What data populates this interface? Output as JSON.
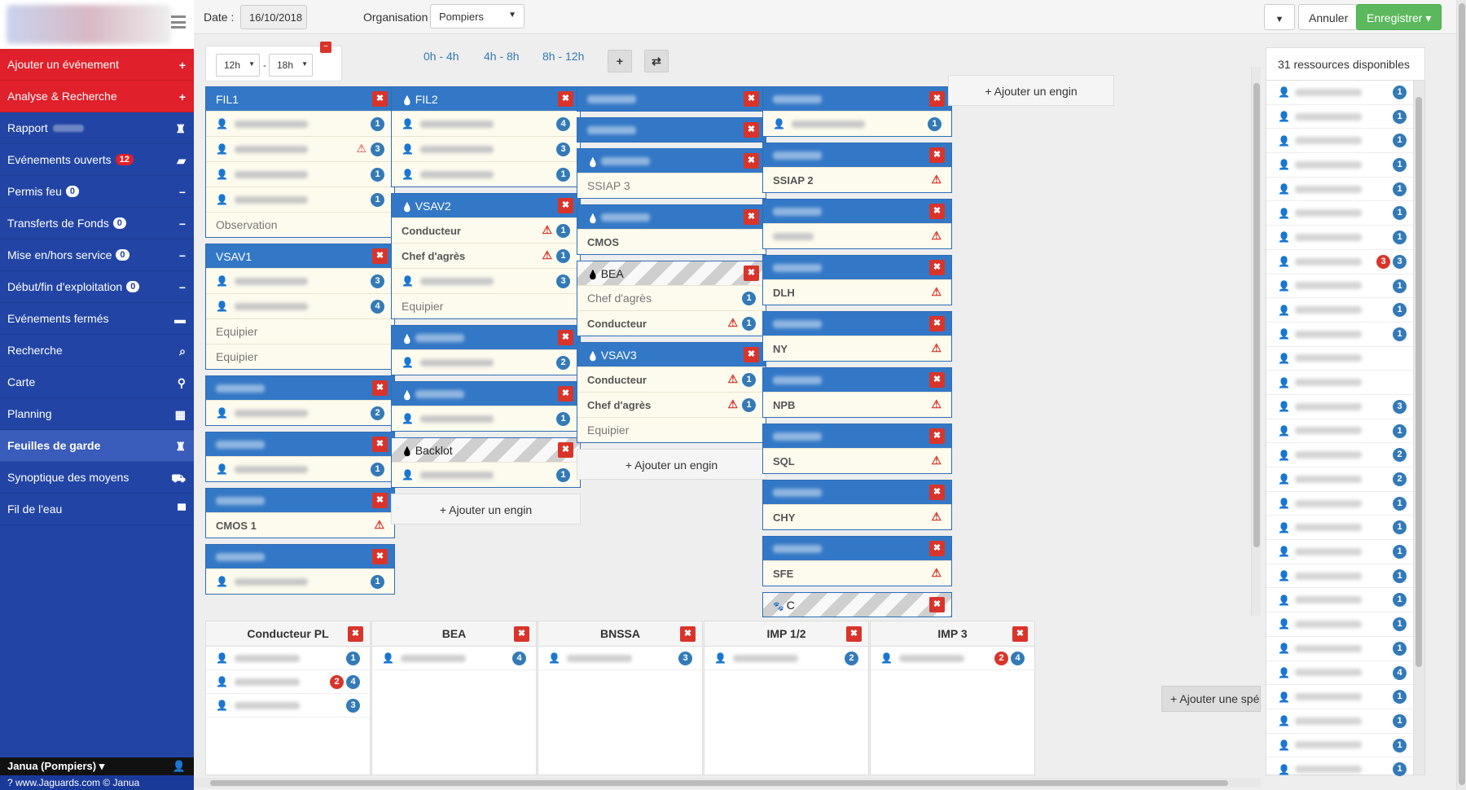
{
  "sidebar": {
    "items": [
      {
        "label": "Ajouter un événement",
        "style": "red",
        "icon": "plus-icon",
        "glyph": "+",
        "count": ""
      },
      {
        "label": "Analyse & Recherche",
        "style": "red",
        "icon": "plus-icon",
        "glyph": "+",
        "count": ""
      },
      {
        "label": "Rapport",
        "style": "blue",
        "icon": "fire-extinguisher-icon",
        "glyph": "♜",
        "count": ""
      },
      {
        "label": "Evénements ouverts",
        "style": "blue",
        "icon": "folder-open-icon",
        "glyph": "▰",
        "count": "12"
      },
      {
        "label": "Permis feu",
        "style": "blue",
        "icon": "minus-icon",
        "glyph": "−",
        "count": "0"
      },
      {
        "label": "Transferts de Fonds",
        "style": "blue",
        "icon": "minus-icon",
        "glyph": "−",
        "count": "0"
      },
      {
        "label": "Mise en/hors service",
        "style": "blue",
        "icon": "minus-icon",
        "glyph": "−",
        "count": "0"
      },
      {
        "label": "Début/fin d'exploitation",
        "style": "blue",
        "icon": "minus-icon",
        "glyph": "−",
        "count": "0"
      },
      {
        "label": "Evénements fermés",
        "style": "blue",
        "icon": "folder-icon",
        "glyph": "▬",
        "count": ""
      },
      {
        "label": "Recherche",
        "style": "blue",
        "icon": "search-icon",
        "glyph": "⌕",
        "count": ""
      },
      {
        "label": "Carte",
        "style": "blue",
        "icon": "map-marker-icon",
        "glyph": "⚲",
        "count": ""
      },
      {
        "label": "Planning",
        "style": "blue",
        "icon": "calendar-icon",
        "glyph": "▦",
        "count": ""
      },
      {
        "label": "Feuilles de garde",
        "style": "active",
        "icon": "guard-sheet-icon",
        "glyph": "♜",
        "count": ""
      },
      {
        "label": "Synoptique des moyens",
        "style": "blue",
        "icon": "truck-icon",
        "glyph": "⛟",
        "count": ""
      },
      {
        "label": "Fil de l'eau",
        "style": "blue",
        "icon": "comment-icon",
        "glyph": "▀",
        "count": ""
      }
    ],
    "user": "Janua (Pompiers) ▾",
    "footer": "? www.Jaguards.com © Janua"
  },
  "topbar": {
    "date_label": "Date :",
    "date_value": "16/10/2018",
    "org_label": "Organisation :",
    "org_value": "Pompiers",
    "cancel_label": "Annuler",
    "save_label": "Enregistrer ▾"
  },
  "timebar": {
    "from": "12h",
    "to": "18h",
    "sep": "-",
    "ranges": [
      "0h - 4h",
      "4h - 8h",
      "8h - 12h"
    ]
  },
  "columns": [
    [
      {
        "title": "FIL1",
        "drop": false,
        "hatch": false,
        "rows": [
          {
            "type": "person",
            "count": "1",
            "warn": false
          },
          {
            "type": "person",
            "count": "3",
            "warn": true
          },
          {
            "type": "person",
            "count": "1",
            "warn": false
          },
          {
            "type": "person",
            "count": "1",
            "warn": false
          },
          {
            "type": "label",
            "text": "Observation"
          }
        ]
      },
      {
        "title": "VSAV1",
        "drop": false,
        "hatch": false,
        "rows": [
          {
            "type": "person",
            "count": "3",
            "warn": false
          },
          {
            "type": "person",
            "count": "4",
            "warn": false
          },
          {
            "type": "label",
            "text": "Equipier"
          },
          {
            "type": "label",
            "text": "Equipier"
          }
        ]
      },
      {
        "title": "",
        "drop": false,
        "hatch": false,
        "rows": [
          {
            "type": "person",
            "count": "2",
            "warn": false
          }
        ]
      },
      {
        "title": "",
        "drop": false,
        "hatch": false,
        "rows": [
          {
            "type": "person",
            "count": "1",
            "warn": false
          }
        ]
      },
      {
        "title": "",
        "drop": false,
        "hatch": false,
        "rows": [
          {
            "type": "bold",
            "text": "CMOS 1",
            "warn": true
          }
        ]
      },
      {
        "title": "",
        "drop": false,
        "hatch": false,
        "rows": [
          {
            "type": "person",
            "count": "1",
            "warn": false
          }
        ]
      }
    ],
    [
      {
        "title": "FIL2",
        "drop": true,
        "hatch": false,
        "rows": [
          {
            "type": "person",
            "count": "4",
            "warn": false
          },
          {
            "type": "person",
            "count": "3",
            "warn": false
          },
          {
            "type": "person",
            "count": "1",
            "warn": false
          }
        ]
      },
      {
        "title": "VSAV2",
        "drop": true,
        "hatch": false,
        "rows": [
          {
            "type": "bold",
            "text": "Conducteur",
            "count": "1",
            "warn": true
          },
          {
            "type": "bold",
            "text": "Chef d'agrès",
            "count": "1",
            "warn": true
          },
          {
            "type": "person",
            "count": "3",
            "warn": false
          },
          {
            "type": "label",
            "text": "Equipier"
          }
        ]
      },
      {
        "title": "",
        "drop": true,
        "hatch": false,
        "rows": [
          {
            "type": "person",
            "count": "2",
            "warn": false
          }
        ]
      },
      {
        "title": "",
        "drop": true,
        "hatch": false,
        "rows": [
          {
            "type": "person",
            "count": "1",
            "warn": false
          }
        ]
      },
      {
        "title": "Backlot",
        "drop": true,
        "hatch": true,
        "rows": [
          {
            "type": "person",
            "count": "1",
            "warn": false
          }
        ]
      },
      {
        "add": "Ajouter un engin"
      }
    ],
    [
      {
        "title": "",
        "drop": false,
        "hatch": false,
        "rows": []
      },
      {
        "title": "",
        "drop": false,
        "hatch": false,
        "rows": []
      },
      {
        "title": "",
        "drop": true,
        "hatch": false,
        "rows": [
          {
            "type": "label",
            "text": "SSIAP 3"
          }
        ]
      },
      {
        "title": "",
        "drop": true,
        "hatch": false,
        "rows": [
          {
            "type": "bold",
            "text": "CMOS",
            "warn": false
          }
        ]
      },
      {
        "title": "BEA",
        "drop": true,
        "hatch": true,
        "rows": [
          {
            "type": "label",
            "text": "Chef d'agrès",
            "count": "1",
            "warn": false
          },
          {
            "type": "bold",
            "text": "Conducteur",
            "count": "1",
            "warn": true
          }
        ]
      },
      {
        "title": "VSAV3",
        "drop": true,
        "hatch": false,
        "rows": [
          {
            "type": "bold",
            "text": "Conducteur",
            "count": "1",
            "warn": true
          },
          {
            "type": "bold",
            "text": "Chef d'agrès",
            "count": "1",
            "warn": true
          },
          {
            "type": "label",
            "text": "Equipier"
          }
        ]
      },
      {
        "add": "Ajouter un engin"
      }
    ],
    [
      {
        "title": "",
        "drop": false,
        "hatch": false,
        "rows": [
          {
            "type": "person",
            "count": "1",
            "warn": false
          }
        ]
      },
      {
        "title": "",
        "drop": false,
        "hatch": false,
        "rows": [
          {
            "type": "bold",
            "text": "SSIAP 2",
            "warn": true
          }
        ]
      },
      {
        "title": "",
        "drop": false,
        "hatch": false,
        "rows": [
          {
            "type": "blurbold",
            "warn": true
          }
        ]
      },
      {
        "title": "",
        "drop": false,
        "hatch": false,
        "rows": [
          {
            "type": "bold",
            "text": "DLH",
            "warn": true
          }
        ]
      },
      {
        "title": "",
        "drop": false,
        "hatch": false,
        "rows": [
          {
            "type": "bold",
            "text": "NY",
            "warn": true
          }
        ]
      },
      {
        "title": "",
        "drop": false,
        "hatch": false,
        "rows": [
          {
            "type": "bold",
            "text": "NPB",
            "warn": true
          }
        ]
      },
      {
        "title": "",
        "drop": false,
        "hatch": false,
        "rows": [
          {
            "type": "bold",
            "text": "SQL",
            "warn": true
          }
        ]
      },
      {
        "title": "",
        "drop": false,
        "hatch": false,
        "rows": [
          {
            "type": "bold",
            "text": "CHY",
            "warn": true
          }
        ]
      },
      {
        "title": "",
        "drop": false,
        "hatch": false,
        "rows": [
          {
            "type": "bold",
            "text": "SFE",
            "warn": true
          }
        ]
      },
      {
        "title": "C",
        "drop": false,
        "paw": true,
        "hatch": true,
        "rows": []
      }
    ],
    [
      {
        "add": "Ajouter un engin"
      }
    ]
  ],
  "specialities": [
    {
      "title": "Conducteur PL",
      "rows": [
        {
          "count": "1",
          "red": ""
        },
        {
          "count": "4",
          "red": "2"
        },
        {
          "count": "3",
          "red": ""
        }
      ]
    },
    {
      "title": "BEA",
      "rows": [
        {
          "count": "4",
          "red": ""
        }
      ]
    },
    {
      "title": "BNSSA",
      "rows": [
        {
          "count": "3",
          "red": ""
        }
      ]
    },
    {
      "title": "IMP 1/2",
      "rows": [
        {
          "count": "2",
          "red": ""
        }
      ]
    },
    {
      "title": "IMP 3",
      "rows": [
        {
          "count": "4",
          "red": "2"
        }
      ]
    }
  ],
  "add_spec_label": "Ajouter une spé",
  "resources": {
    "title": "31 ressources disponibles",
    "items": [
      {
        "count": "1",
        "red": ""
      },
      {
        "count": "1",
        "red": ""
      },
      {
        "count": "1",
        "red": ""
      },
      {
        "count": "1",
        "red": ""
      },
      {
        "count": "1",
        "red": ""
      },
      {
        "count": "1",
        "red": ""
      },
      {
        "count": "1",
        "red": ""
      },
      {
        "count": "3",
        "red": "3"
      },
      {
        "count": "1",
        "red": ""
      },
      {
        "count": "1",
        "red": ""
      },
      {
        "count": "1",
        "red": ""
      },
      {
        "count": "",
        "red": ""
      },
      {
        "count": "",
        "red": ""
      },
      {
        "count": "3",
        "red": ""
      },
      {
        "count": "1",
        "red": ""
      },
      {
        "count": "2",
        "red": ""
      },
      {
        "count": "2",
        "red": ""
      },
      {
        "count": "1",
        "red": ""
      },
      {
        "count": "1",
        "red": ""
      },
      {
        "count": "1",
        "red": ""
      },
      {
        "count": "1",
        "red": ""
      },
      {
        "count": "1",
        "red": ""
      },
      {
        "count": "1",
        "red": ""
      },
      {
        "count": "1",
        "red": ""
      },
      {
        "count": "4",
        "red": ""
      },
      {
        "count": "1",
        "red": ""
      },
      {
        "count": "1",
        "red": ""
      },
      {
        "count": "1",
        "red": ""
      },
      {
        "count": "1",
        "red": ""
      }
    ]
  }
}
